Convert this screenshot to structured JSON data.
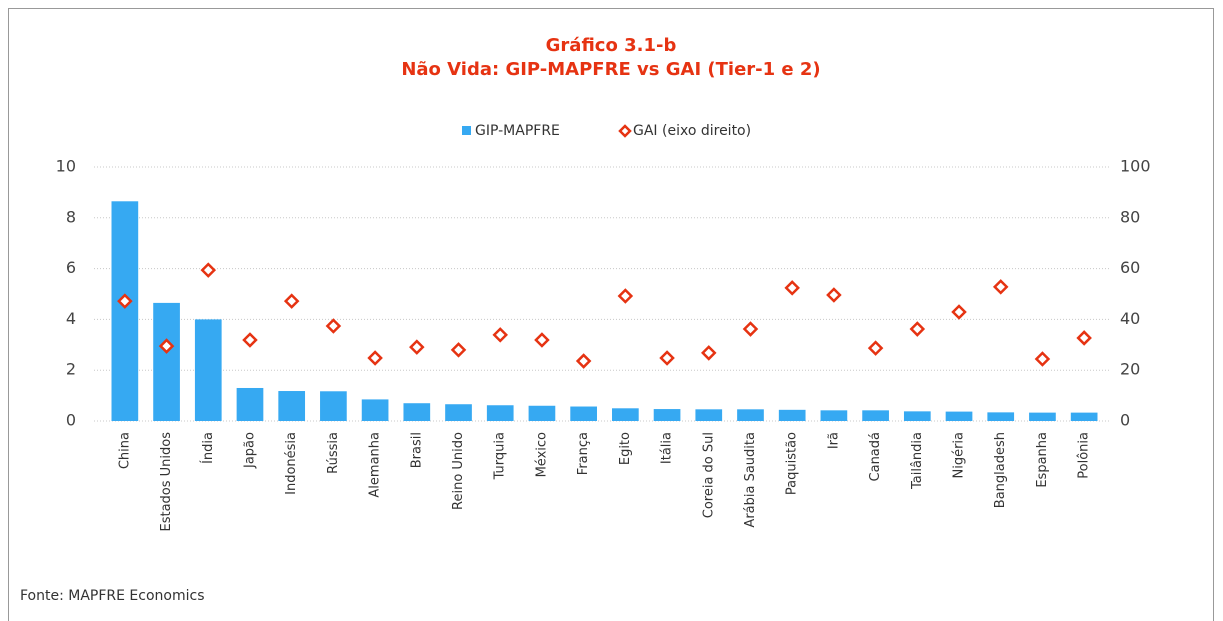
{
  "chart_data": {
    "type": "bar",
    "title": "Gráfico 3.1-b",
    "subtitle": "Não Vida: GIP-MAPFRE vs GAI (Tier-1 e 2)",
    "source": "Fonte: MAPFRE Economics",
    "categories": [
      "China",
      "Estados Unidos",
      "Índia",
      "Japão",
      "Indonésia",
      "Rússia",
      "Alemanha",
      "Brasil",
      "Reino Unido",
      "Turquia",
      "México",
      "França",
      "Egito",
      "Itália",
      "Coreia do Sul",
      "Arábia Saudita",
      "Paquistão",
      "Irã",
      "Canadá",
      "Tailândia",
      "Nigéria",
      "Bangladesh",
      "Espanha",
      "Polônia"
    ],
    "series": [
      {
        "name": "GIP-MAPFRE",
        "color": "#36a9f2",
        "values": [
          8.65,
          4.65,
          4.0,
          1.3,
          1.18,
          1.17,
          0.85,
          0.7,
          0.66,
          0.62,
          0.6,
          0.57,
          0.5,
          0.47,
          0.46,
          0.46,
          0.44,
          0.42,
          0.42,
          0.38,
          0.37,
          0.34,
          0.33,
          0.33
        ]
      },
      {
        "name": "GAI (eixo direito)",
        "color": "#e63312",
        "axis": "y2",
        "values": [
          47.2,
          29.5,
          59.4,
          31.9,
          47.2,
          37.4,
          24.8,
          29.1,
          28,
          33.9,
          31.9,
          23.6,
          49.2,
          24.8,
          26.8,
          36.2,
          52.4,
          49.6,
          28.7,
          36.2,
          42.9,
          52.8,
          24.4,
          32.7
        ]
      }
    ],
    "ylim": [
      0,
      10
    ],
    "yticks": [
      0,
      2,
      4,
      6,
      8,
      10
    ],
    "y2lim": [
      0,
      100
    ],
    "y2ticks": [
      0,
      20,
      40,
      60,
      80,
      100
    ],
    "grid": true
  }
}
